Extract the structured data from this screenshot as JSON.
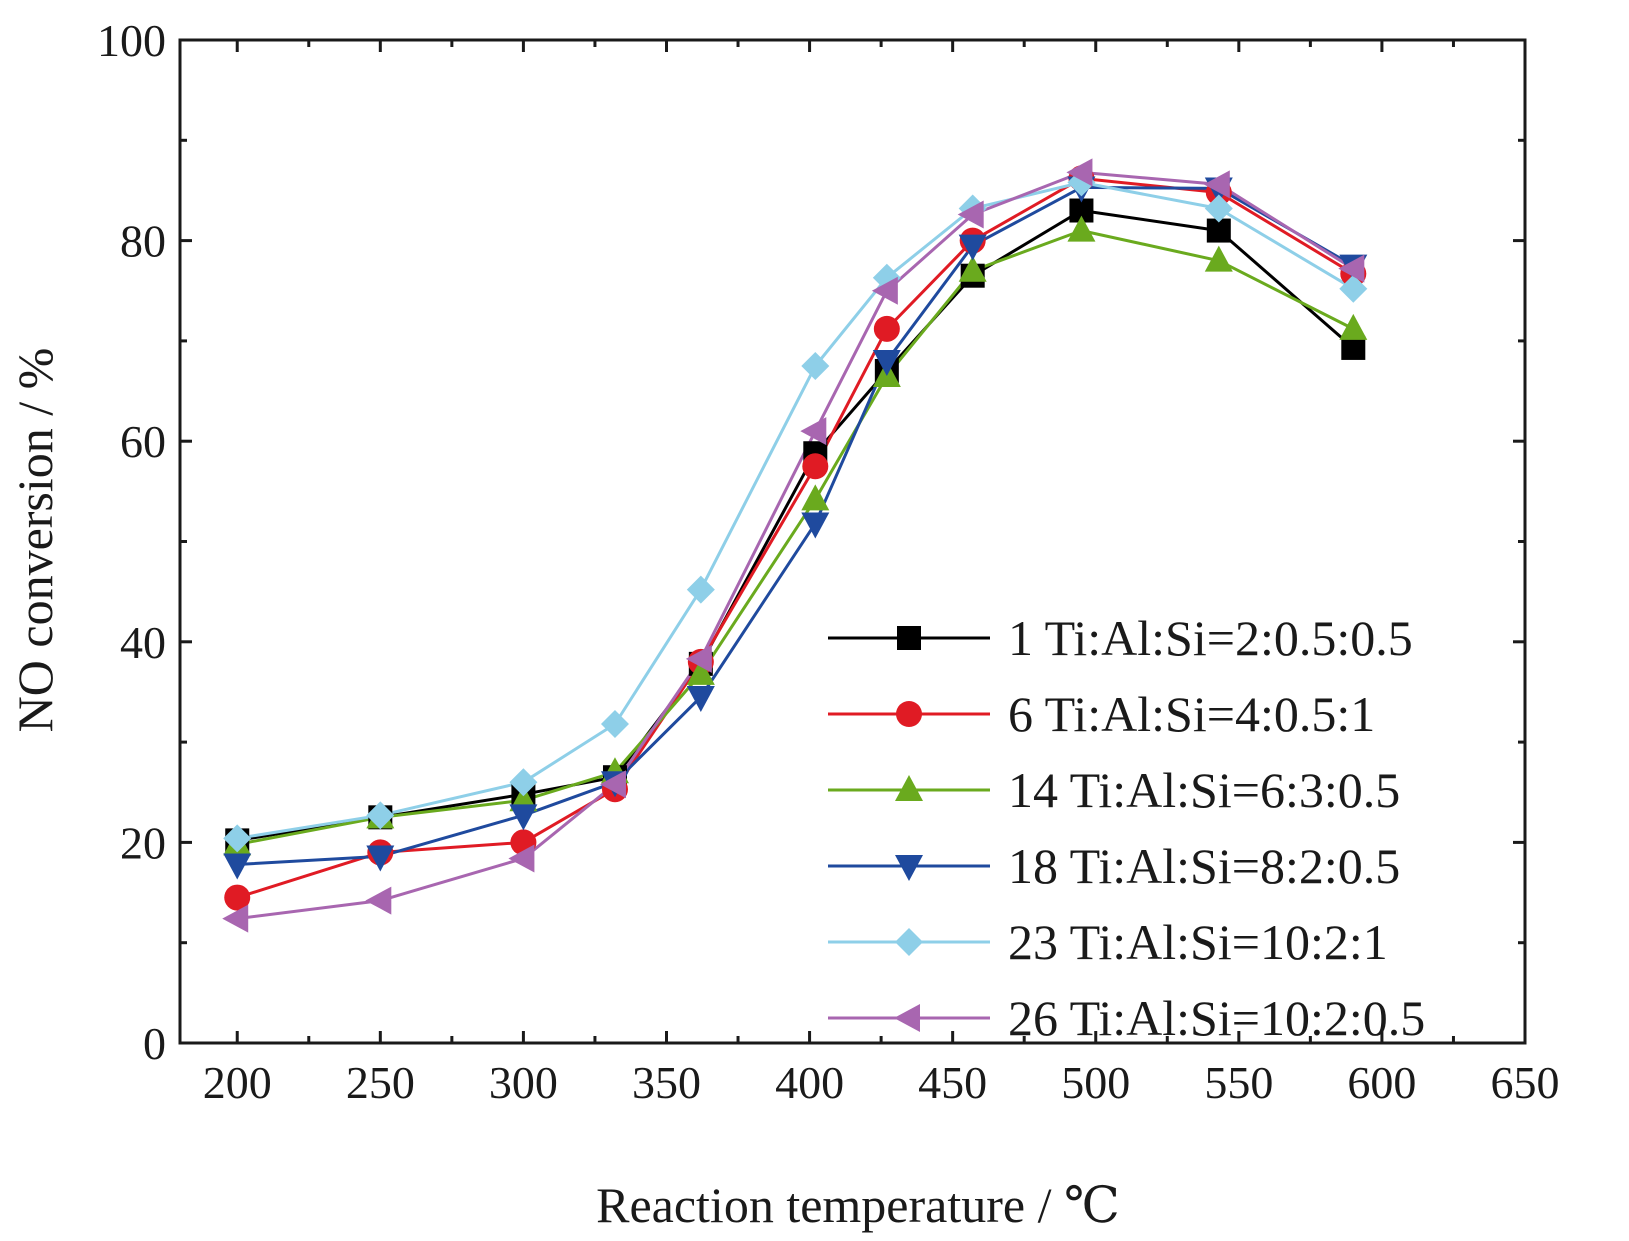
{
  "chart_data": {
    "type": "line",
    "xlabel": "Reaction temperature / ℃",
    "ylabel": "NO conversion / %",
    "xlim": [
      180,
      650
    ],
    "ylim": [
      0,
      100
    ],
    "xticks": [
      200,
      250,
      300,
      350,
      400,
      450,
      500,
      550,
      600,
      650
    ],
    "yticks": [
      0,
      20,
      40,
      60,
      80,
      100
    ],
    "grid": false,
    "legend_position": "right",
    "series": [
      {
        "name": "1 Ti:Al:Si=2:0.5:0.5",
        "color": "#000000",
        "marker": "square",
        "points": [
          [
            200,
            20.2
          ],
          [
            250,
            22.5
          ],
          [
            300,
            24.8
          ],
          [
            332,
            26.5
          ],
          [
            362,
            37.8
          ],
          [
            402,
            58.8
          ],
          [
            427,
            67
          ],
          [
            457,
            76.5
          ],
          [
            495,
            83
          ],
          [
            543,
            81
          ],
          [
            590,
            69.3
          ]
        ]
      },
      {
        "name": "6 Ti:Al:Si=4:0.5:1",
        "color": "#e01b24",
        "marker": "circle",
        "points": [
          [
            200,
            14.5
          ],
          [
            250,
            19
          ],
          [
            300,
            20
          ],
          [
            332,
            25.3
          ],
          [
            362,
            38
          ],
          [
            402,
            57.5
          ],
          [
            427,
            71.2
          ],
          [
            457,
            80
          ],
          [
            495,
            86.2
          ],
          [
            543,
            84.8
          ],
          [
            590,
            76.7
          ]
        ]
      },
      {
        "name": "14 Ti:Al:Si=6:3:0.5",
        "color": "#6aaa1e",
        "marker": "triangle-up",
        "points": [
          [
            200,
            19.8
          ],
          [
            250,
            22.5
          ],
          [
            300,
            24.2
          ],
          [
            332,
            27
          ],
          [
            362,
            36.8
          ],
          [
            402,
            54.2
          ],
          [
            427,
            66.5
          ],
          [
            457,
            77
          ],
          [
            495,
            81
          ],
          [
            543,
            78
          ],
          [
            590,
            71.2
          ]
        ]
      },
      {
        "name": "18 Ti:Al:Si=8:2:0.5",
        "color": "#1f4a9e",
        "marker": "triangle-down",
        "points": [
          [
            200,
            17.8
          ],
          [
            250,
            18.6
          ],
          [
            300,
            22.7
          ],
          [
            332,
            26
          ],
          [
            362,
            34.5
          ],
          [
            402,
            51.8
          ],
          [
            427,
            68
          ],
          [
            457,
            79.5
          ],
          [
            495,
            85.3
          ],
          [
            543,
            85.2
          ],
          [
            590,
            77.5
          ]
        ]
      },
      {
        "name": "23 Ti:Al:Si=10:2:1",
        "color": "#8ecfe8",
        "marker": "diamond",
        "points": [
          [
            200,
            20.4
          ],
          [
            250,
            22.7
          ],
          [
            300,
            26
          ],
          [
            332,
            31.8
          ],
          [
            362,
            45.2
          ],
          [
            402,
            67.5
          ],
          [
            427,
            76.3
          ],
          [
            457,
            83.2
          ],
          [
            495,
            85.8
          ],
          [
            543,
            83.2
          ],
          [
            590,
            75.2
          ]
        ]
      },
      {
        "name": "26 Ti:Al:Si=10:2:0.5",
        "color": "#a866b0",
        "marker": "triangle-left",
        "points": [
          [
            200,
            12.4
          ],
          [
            250,
            14.2
          ],
          [
            300,
            18.4
          ],
          [
            332,
            25.8
          ],
          [
            362,
            38.3
          ],
          [
            402,
            61
          ],
          [
            427,
            75
          ],
          [
            457,
            82.6
          ],
          [
            495,
            86.8
          ],
          [
            543,
            85.6
          ],
          [
            590,
            77.2
          ]
        ]
      }
    ]
  }
}
